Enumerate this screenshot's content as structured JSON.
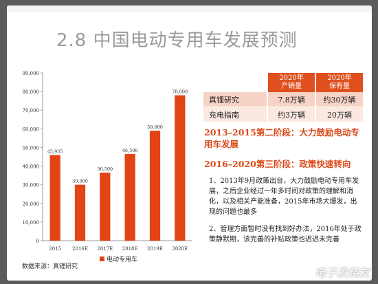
{
  "slide": {
    "title": "2.8 中国电动专用车发展预测",
    "source": "数据来源：真锂研究"
  },
  "chart_data": {
    "type": "bar",
    "categories": [
      "2015",
      "2016E",
      "2017E",
      "2018E",
      "2019E",
      "2020E"
    ],
    "values": [
      45935,
      30000,
      36500,
      46500,
      59000,
      78000
    ],
    "value_labels": [
      "45,935",
      "30,000",
      "36,500",
      "46,500",
      "59,000",
      "78,000"
    ],
    "series": [
      {
        "name": "电动专用车",
        "values": [
          45935,
          30000,
          36500,
          46500,
          59000,
          78000
        ]
      }
    ],
    "yticks": [
      "0",
      "10,000",
      "20,000",
      "30,000",
      "40,000",
      "50,000",
      "60,000",
      "70,000",
      "80,000",
      "90,000"
    ],
    "ylim": [
      0,
      90000
    ],
    "color": "#e24416",
    "legend_position": "bottom"
  },
  "table": {
    "headers": [
      "",
      "2020年\n产销量",
      "2020年\n保有量"
    ],
    "rows": [
      [
        "真锂研究",
        "7.8万辆",
        "约30万辆"
      ],
      [
        "充电指南",
        "约3万辆",
        "20万辆"
      ]
    ]
  },
  "stages": {
    "stage1": "2013–2015第二阶段：大力鼓励电动专用车发展",
    "stage2": "2016–2020第三阶段：政策快速转向"
  },
  "paragraphs": {
    "p1": "1、2013年9月政策出台，大力鼓励电动专用车发展，之后企业经过一年多时间对政策的理解和消化，以及相关产能准备，2015年市场大爆发，出现的问题也最多",
    "p2": "2、管理方面暂时没有找到好办法，2016年处于政策静默期，该完善的补贴政策也迟迟未完善"
  },
  "watermark": "电子发烧友",
  "colors": {
    "accent": "#e24416",
    "header": "#e0501e"
  }
}
